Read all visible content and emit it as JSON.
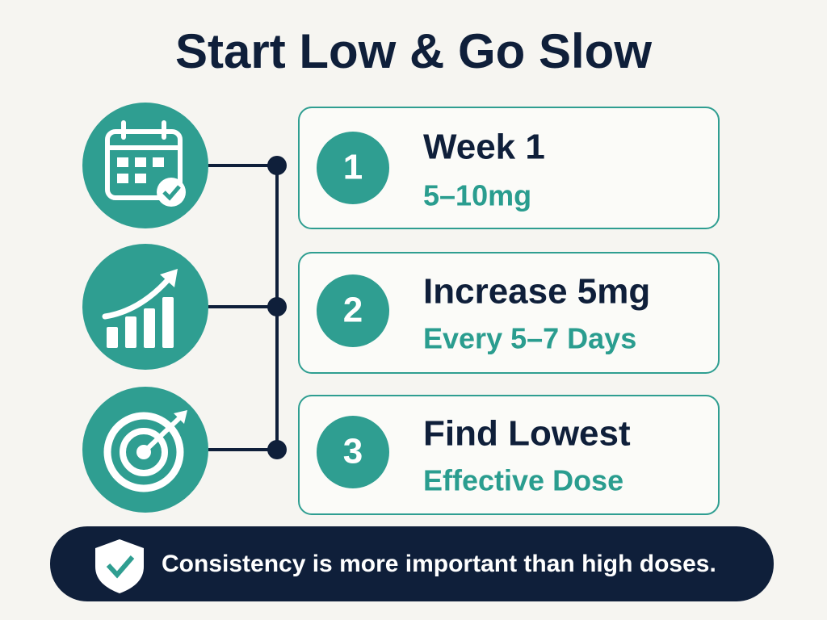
{
  "header": {
    "title": "Start Low & Go Slow"
  },
  "steps": [
    {
      "number": "1",
      "heading": "Week 1",
      "detail": "5–10mg"
    },
    {
      "number": "2",
      "heading": "Increase 5mg",
      "detail": "Every 5–7 Days"
    },
    {
      "number": "3",
      "heading": "Find Lowest",
      "detail": "Effective Dose"
    }
  ],
  "footer": {
    "text": "Consistency is more important than high doses."
  }
}
